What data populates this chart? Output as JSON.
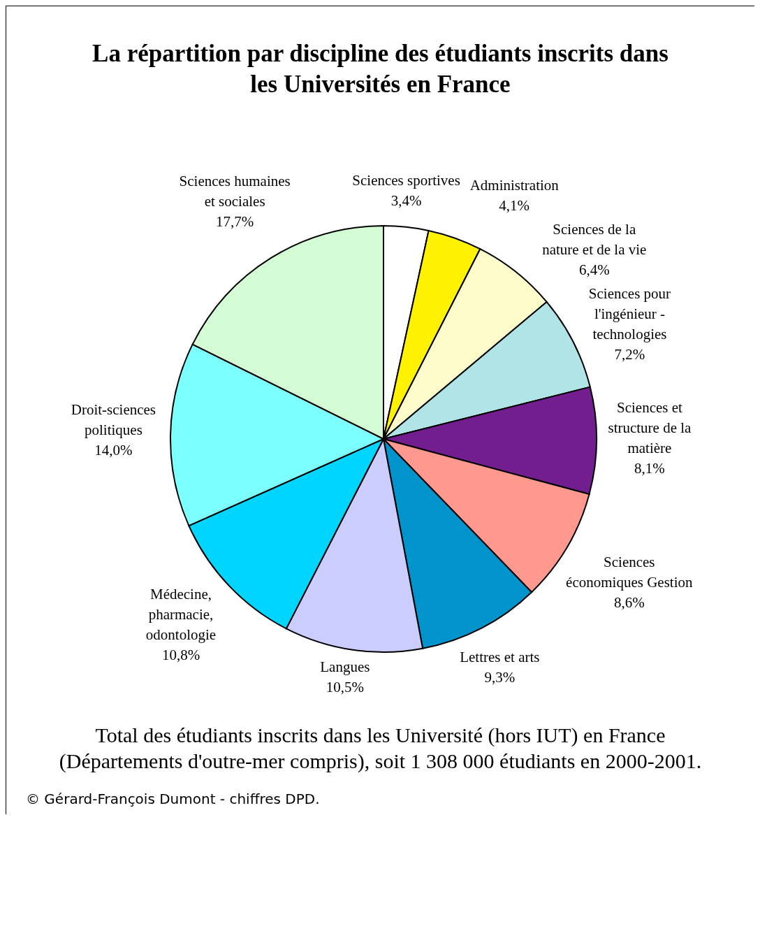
{
  "chart_data": {
    "type": "pie",
    "title": "La répartition par discipline des étudiants inscrits dans les Universités en France",
    "categories": [
      "Sciences sportives",
      "Administration",
      "Sciences de la nature et de la vie",
      "Sciences pour l'ingénieur - technologies",
      "Sciences et structure de la matière",
      "Sciences économiques Gestion",
      "Lettres et arts",
      "Langues",
      "Médecine, pharmacie, odontologie",
      "Droit-sciences politiques",
      "Sciences humaines et sociales"
    ],
    "values": [
      3.4,
      4.1,
      6.4,
      7.2,
      8.1,
      8.6,
      9.3,
      10.5,
      10.8,
      14.0,
      17.7
    ],
    "value_labels": [
      "3,4%",
      "4,1%",
      "6,4%",
      "7,2%",
      "8,1%",
      "8,6%",
      "9,3%",
      "10,5%",
      "10,8%",
      "14,0%",
      "17,7%"
    ],
    "colors": [
      "#ffffff",
      "#fff200",
      "#fffccc",
      "#b0e4e6",
      "#721e8f",
      "#ff9990",
      "#0093cc",
      "#cccdff",
      "#00d5ff",
      "#7cffff",
      "#d4fcd4"
    ],
    "annotations": [
      "Total des étudiants inscrits dans les Université (hors IUT) en France (Départements d'outre-mer compris), soit 1 308 000 étudiants en 2000-2001.",
      "© Gérard-François Dumont - chiffres DPD."
    ]
  }
}
